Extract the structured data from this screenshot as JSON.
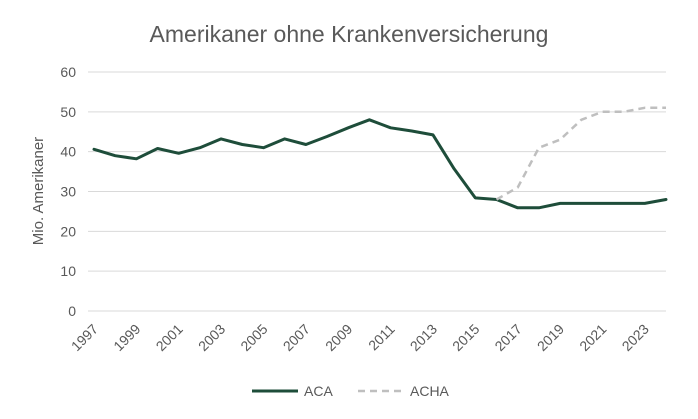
{
  "chart_data": {
    "type": "line",
    "title": "Amerikaner ohne Krankenversicherung",
    "xlabel": "",
    "ylabel": "Mio. Amerikaner",
    "ylim": [
      0,
      60
    ],
    "yticks": [
      0,
      10,
      20,
      30,
      40,
      50,
      60
    ],
    "xlim": [
      1997,
      2024
    ],
    "xticks": [
      "1997",
      "1999",
      "2001",
      "2003",
      "2005",
      "2007",
      "2009",
      "2011",
      "2013",
      "2015",
      "2017",
      "2019",
      "2021",
      "2023"
    ],
    "grid": true,
    "legend_position": "bottom",
    "series": [
      {
        "name": "ACA",
        "color": "#1e4d3a",
        "style": "solid",
        "x": [
          1997,
          1998,
          1999,
          2000,
          2001,
          2002,
          2003,
          2004,
          2005,
          2006,
          2007,
          2008,
          2009,
          2010,
          2011,
          2012,
          2013,
          2014,
          2015,
          2016,
          2017,
          2018,
          2019,
          2020,
          2021,
          2022,
          2023,
          2024
        ],
        "values": [
          40.6,
          39,
          38.2,
          40.8,
          39.6,
          41,
          43.2,
          41.8,
          41,
          43.2,
          41.8,
          43.8,
          46,
          48,
          46,
          45.2,
          44.2,
          35.7,
          28.4,
          28,
          25.9,
          25.9,
          27,
          27,
          27,
          27,
          27,
          28
        ]
      },
      {
        "name": "ACHA",
        "color": "#bfbfbf",
        "style": "dashed",
        "x": [
          2016,
          2017,
          2018,
          2019,
          2020,
          2021,
          2022,
          2023,
          2024
        ],
        "values": [
          28,
          31,
          41,
          43,
          48,
          50,
          50,
          51,
          51
        ]
      }
    ]
  }
}
